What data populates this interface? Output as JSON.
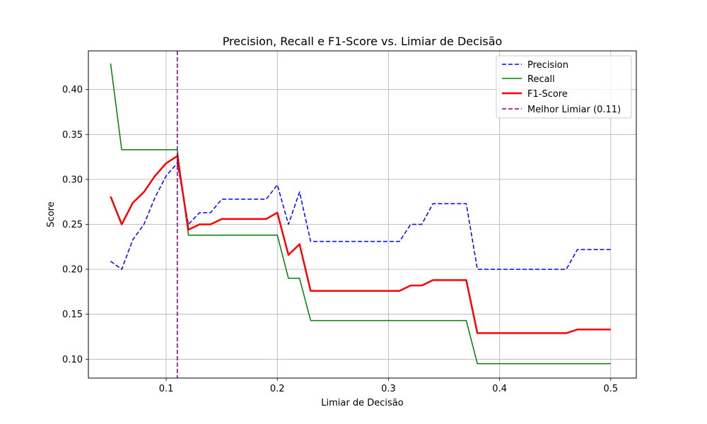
{
  "chart_data": {
    "type": "line",
    "title": "Precision, Recall e F1-Score vs. Limiar de Decisão",
    "xlabel": "Limiar de Decisão",
    "ylabel": "Score",
    "xlim": [
      0.03,
      0.523
    ],
    "ylim": [
      0.079,
      0.443
    ],
    "xticks": [
      0.1,
      0.2,
      0.3,
      0.4,
      0.5
    ],
    "xtick_labels": [
      "0.1",
      "0.2",
      "0.3",
      "0.4",
      "0.5"
    ],
    "yticks": [
      0.1,
      0.15,
      0.2,
      0.25,
      0.3,
      0.35,
      0.4
    ],
    "ytick_labels": [
      "0.10",
      "0.15",
      "0.20",
      "0.25",
      "0.30",
      "0.35",
      "0.40"
    ],
    "grid": true,
    "legend_position": "top-right",
    "x": [
      0.05,
      0.06,
      0.07,
      0.08,
      0.09,
      0.1,
      0.11,
      0.12,
      0.13,
      0.14,
      0.15,
      0.16,
      0.17,
      0.18,
      0.19,
      0.2,
      0.21,
      0.22,
      0.23,
      0.24,
      0.25,
      0.26,
      0.27,
      0.28,
      0.29,
      0.3,
      0.31,
      0.32,
      0.33,
      0.34,
      0.35,
      0.36,
      0.37,
      0.38,
      0.39,
      0.4,
      0.41,
      0.42,
      0.43,
      0.44,
      0.45,
      0.46,
      0.47,
      0.48,
      0.49,
      0.5
    ],
    "series": [
      {
        "name": "Precision",
        "color": "#0000ff",
        "style": "dashed",
        "values": [
          0.209,
          0.2,
          0.233,
          0.25,
          0.28,
          0.304,
          0.318,
          0.25,
          0.263,
          0.263,
          0.278,
          0.278,
          0.278,
          0.278,
          0.278,
          0.294,
          0.25,
          0.286,
          0.231,
          0.231,
          0.231,
          0.231,
          0.231,
          0.231,
          0.231,
          0.231,
          0.231,
          0.25,
          0.25,
          0.273,
          0.273,
          0.273,
          0.273,
          0.2,
          0.2,
          0.2,
          0.2,
          0.2,
          0.2,
          0.2,
          0.2,
          0.2,
          0.222,
          0.222,
          0.222,
          0.222
        ]
      },
      {
        "name": "Recall",
        "color": "#008000",
        "style": "solid",
        "values": [
          0.429,
          0.333,
          0.333,
          0.333,
          0.333,
          0.333,
          0.333,
          0.238,
          0.238,
          0.238,
          0.238,
          0.238,
          0.238,
          0.238,
          0.238,
          0.238,
          0.19,
          0.19,
          0.143,
          0.143,
          0.143,
          0.143,
          0.143,
          0.143,
          0.143,
          0.143,
          0.143,
          0.143,
          0.143,
          0.143,
          0.143,
          0.143,
          0.143,
          0.095,
          0.095,
          0.095,
          0.095,
          0.095,
          0.095,
          0.095,
          0.095,
          0.095,
          0.095,
          0.095,
          0.095,
          0.095
        ]
      },
      {
        "name": "F1-Score",
        "color": "#ff0000",
        "style": "solid-thick",
        "values": [
          0.281,
          0.25,
          0.274,
          0.286,
          0.304,
          0.318,
          0.326,
          0.244,
          0.25,
          0.25,
          0.256,
          0.256,
          0.256,
          0.256,
          0.256,
          0.263,
          0.216,
          0.228,
          0.176,
          0.176,
          0.176,
          0.176,
          0.176,
          0.176,
          0.176,
          0.176,
          0.176,
          0.182,
          0.182,
          0.188,
          0.188,
          0.188,
          0.188,
          0.129,
          0.129,
          0.129,
          0.129,
          0.129,
          0.129,
          0.129,
          0.129,
          0.129,
          0.133,
          0.133,
          0.133,
          0.133
        ]
      }
    ],
    "vline": {
      "name": "Melhor Limiar (0.11)",
      "x": 0.11,
      "color": "#800080",
      "style": "dashed"
    }
  }
}
